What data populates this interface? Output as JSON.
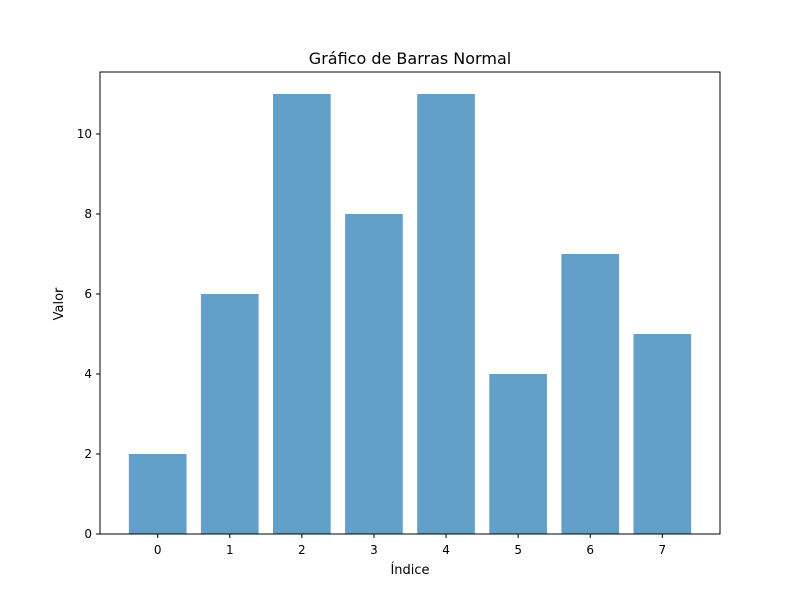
{
  "chart_data": {
    "type": "bar",
    "title": "Gráfico de Barras Normal",
    "xlabel": "Índice",
    "ylabel": "Valor",
    "categories": [
      "0",
      "1",
      "2",
      "3",
      "4",
      "5",
      "6",
      "7"
    ],
    "values": [
      2,
      6,
      11,
      8,
      11,
      4,
      7,
      5
    ],
    "xlim": [
      -0.8,
      7.8
    ],
    "ylim": [
      0,
      11.55
    ],
    "yticks": [
      0,
      2,
      4,
      6,
      8,
      10
    ],
    "bar_color": "#1f77b4",
    "bar_opacity": 0.7,
    "grid": false,
    "legend": false
  }
}
